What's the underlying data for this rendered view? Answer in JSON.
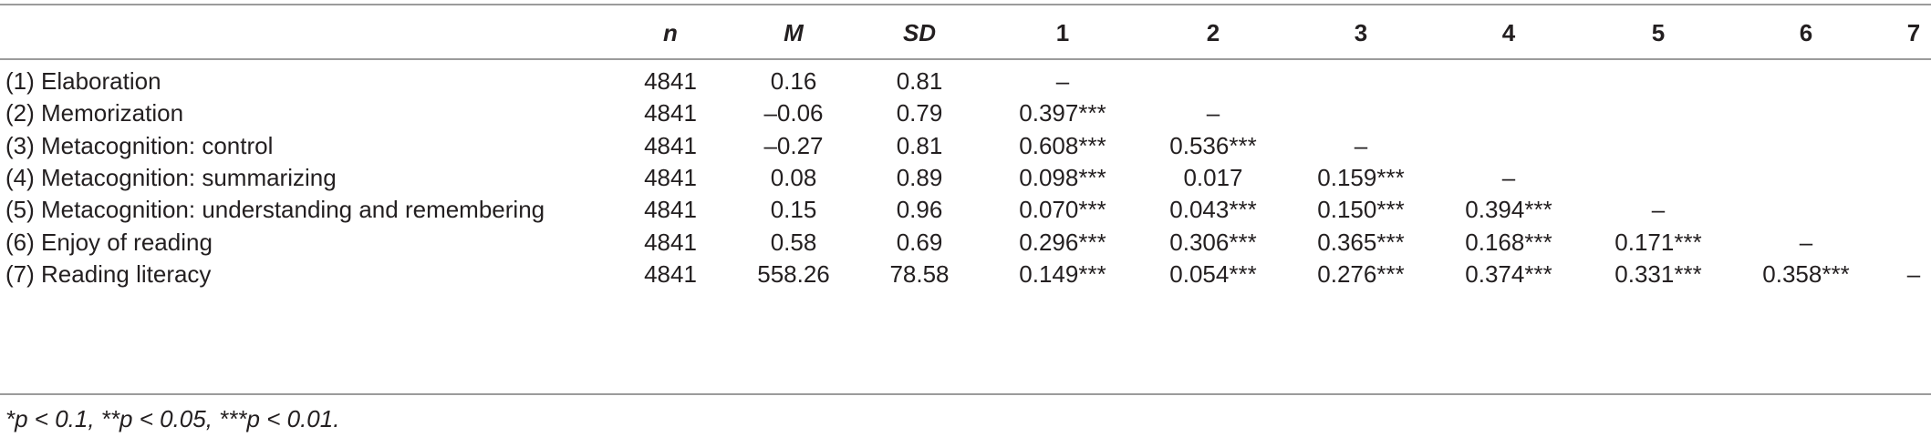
{
  "table": {
    "headers": {
      "n": "n",
      "M": "M",
      "SD": "SD",
      "c1": "1",
      "c2": "2",
      "c3": "3",
      "c4": "4",
      "c5": "5",
      "c6": "6",
      "c7": "7"
    },
    "rows": [
      {
        "label": "(1) Elaboration",
        "n": "4841",
        "M": "0.16",
        "SD": "0.81",
        "c1": "–",
        "c2": "",
        "c3": "",
        "c4": "",
        "c5": "",
        "c6": "",
        "c7": ""
      },
      {
        "label": "(2) Memorization",
        "n": "4841",
        "M": "–0.06",
        "SD": "0.79",
        "c1": "0.397***",
        "c2": "–",
        "c3": "",
        "c4": "",
        "c5": "",
        "c6": "",
        "c7": ""
      },
      {
        "label": "(3) Metacognition: control",
        "n": "4841",
        "M": "–0.27",
        "SD": "0.81",
        "c1": "0.608***",
        "c2": "0.536***",
        "c3": "–",
        "c4": "",
        "c5": "",
        "c6": "",
        "c7": ""
      },
      {
        "label": "(4) Metacognition: summarizing",
        "n": "4841",
        "M": "0.08",
        "SD": "0.89",
        "c1": "0.098***",
        "c2": "0.017",
        "c3": "0.159***",
        "c4": "–",
        "c5": "",
        "c6": "",
        "c7": ""
      },
      {
        "label": "(5) Metacognition: understanding and remembering",
        "n": "4841",
        "M": "0.15",
        "SD": "0.96",
        "c1": "0.070***",
        "c2": "0.043***",
        "c3": "0.150***",
        "c4": "0.394***",
        "c5": "–",
        "c6": "",
        "c7": ""
      },
      {
        "label": "(6) Enjoy of reading",
        "n": "4841",
        "M": "0.58",
        "SD": "0.69",
        "c1": "0.296***",
        "c2": "0.306***",
        "c3": "0.365***",
        "c4": "0.168***",
        "c5": "0.171***",
        "c6": "–",
        "c7": ""
      },
      {
        "label": "(7) Reading literacy",
        "n": "4841",
        "M": "558.26",
        "SD": "78.58",
        "c1": "0.149***",
        "c2": "0.054***",
        "c3": "0.276***",
        "c4": "0.374***",
        "c5": "0.331***",
        "c6": "0.358***",
        "c7": "–"
      }
    ],
    "footnote": "*p < 0.1, **p < 0.05, ***p < 0.01."
  }
}
